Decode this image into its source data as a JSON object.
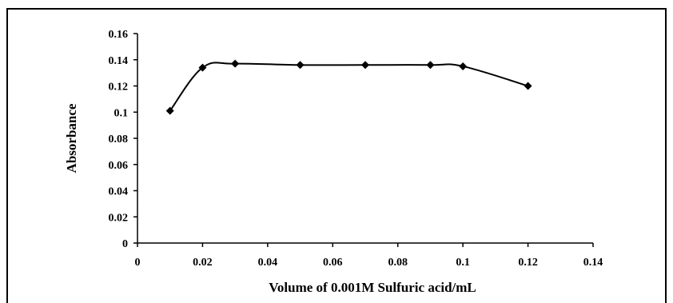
{
  "chart_data": {
    "type": "line",
    "title": "",
    "xlabel": "Volume of  0.001M  Sulfuric  acid/mL",
    "ylabel": "Absorbance",
    "xlim": [
      0,
      0.14
    ],
    "ylim": [
      0,
      0.16
    ],
    "x_ticks": [
      "0",
      "0.02",
      "0.04",
      "0.06",
      "0.08",
      "0.1",
      "0.12",
      "0.14"
    ],
    "y_ticks": [
      "0",
      "0.02",
      "0.04",
      "0.06",
      "0.08",
      "0.1",
      "0.12",
      "0.14",
      "0.16"
    ],
    "grid": false,
    "marker": "diamond",
    "line_color": "#000000",
    "series": [
      {
        "x": [
          0.01,
          0.02,
          0.03,
          0.05,
          0.07,
          0.09,
          0.1,
          0.12
        ],
        "y": [
          0.101,
          0.134,
          0.137,
          0.136,
          0.136,
          0.136,
          0.135,
          0.12
        ]
      }
    ]
  }
}
